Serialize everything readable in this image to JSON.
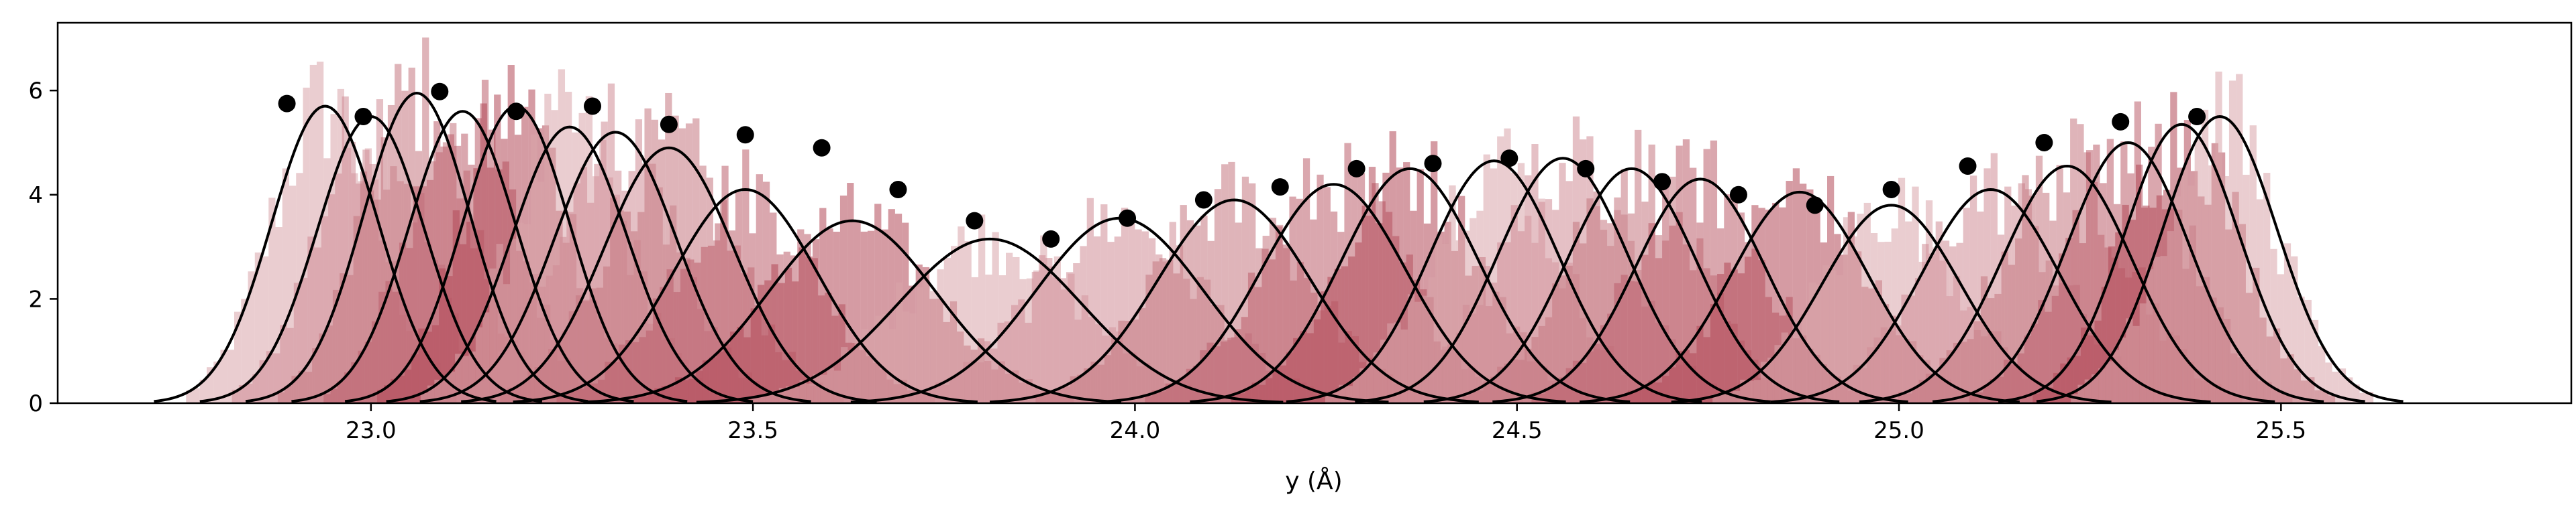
{
  "chart_data": {
    "type": "histogram+line+scatter",
    "title": "",
    "xlabel": "y (Å)",
    "ylabel": "",
    "xlim": [
      22.59,
      25.88
    ],
    "ylim": [
      0,
      7.3
    ],
    "x_ticks": [
      "23.0",
      "23.5",
      "24.0",
      "24.5",
      "25.0",
      "25.5"
    ],
    "x_tick_values": [
      23.0,
      23.5,
      24.0,
      24.5,
      25.0,
      25.5
    ],
    "y_ticks": [
      "0",
      "2",
      "4",
      "6"
    ],
    "y_tick_values": [
      0,
      2,
      4,
      6
    ],
    "grid": false,
    "legend": "none",
    "colors": {
      "histogram_light": "#dfb3b8",
      "histogram_dark": "#a83242",
      "curve": "#000000",
      "points": "#000000"
    },
    "gaussian_series": [
      {
        "mean": 22.94,
        "sigma": 0.07,
        "peak": 5.7
      },
      {
        "mean": 23.0,
        "sigma": 0.07,
        "peak": 5.5
      },
      {
        "mean": 23.06,
        "sigma": 0.07,
        "peak": 5.95
      },
      {
        "mean": 23.12,
        "sigma": 0.07,
        "peak": 5.6
      },
      {
        "mean": 23.19,
        "sigma": 0.07,
        "peak": 5.7
      },
      {
        "mean": 23.26,
        "sigma": 0.075,
        "peak": 5.3
      },
      {
        "mean": 23.32,
        "sigma": 0.08,
        "peak": 5.2
      },
      {
        "mean": 23.39,
        "sigma": 0.085,
        "peak": 4.9
      },
      {
        "mean": 23.49,
        "sigma": 0.095,
        "peak": 4.1
      },
      {
        "mean": 23.63,
        "sigma": 0.11,
        "peak": 3.5
      },
      {
        "mean": 23.81,
        "sigma": 0.12,
        "peak": 3.15
      },
      {
        "mean": 23.98,
        "sigma": 0.11,
        "peak": 3.55
      },
      {
        "mean": 24.13,
        "sigma": 0.1,
        "peak": 3.9
      },
      {
        "mean": 24.26,
        "sigma": 0.095,
        "peak": 4.2
      },
      {
        "mean": 24.36,
        "sigma": 0.09,
        "peak": 4.5
      },
      {
        "mean": 24.47,
        "sigma": 0.085,
        "peak": 4.65
      },
      {
        "mean": 24.56,
        "sigma": 0.085,
        "peak": 4.7
      },
      {
        "mean": 24.65,
        "sigma": 0.085,
        "peak": 4.5
      },
      {
        "mean": 24.74,
        "sigma": 0.085,
        "peak": 4.3
      },
      {
        "mean": 24.87,
        "sigma": 0.09,
        "peak": 4.05
      },
      {
        "mean": 24.99,
        "sigma": 0.09,
        "peak": 3.8
      },
      {
        "mean": 25.12,
        "sigma": 0.09,
        "peak": 4.1
      },
      {
        "mean": 25.22,
        "sigma": 0.085,
        "peak": 4.55
      },
      {
        "mean": 25.3,
        "sigma": 0.08,
        "peak": 5.0
      },
      {
        "mean": 25.37,
        "sigma": 0.075,
        "peak": 5.35
      },
      {
        "mean": 25.42,
        "sigma": 0.075,
        "peak": 5.5
      }
    ],
    "points": {
      "x": [
        22.89,
        22.99,
        23.09,
        23.19,
        23.29,
        23.39,
        23.49,
        23.59,
        23.69,
        23.79,
        23.89,
        23.99,
        24.09,
        24.19,
        24.29,
        24.39,
        24.49,
        24.59,
        24.69,
        24.79,
        24.89,
        24.99,
        25.09,
        25.19,
        25.29,
        25.39
      ],
      "y": [
        5.75,
        5.5,
        5.98,
        5.6,
        5.7,
        5.35,
        5.15,
        4.9,
        4.1,
        3.5,
        3.15,
        3.55,
        3.9,
        4.15,
        4.5,
        4.6,
        4.7,
        4.5,
        4.25,
        4.0,
        3.8,
        4.1,
        4.55,
        5.0,
        5.4,
        5.5
      ]
    }
  }
}
